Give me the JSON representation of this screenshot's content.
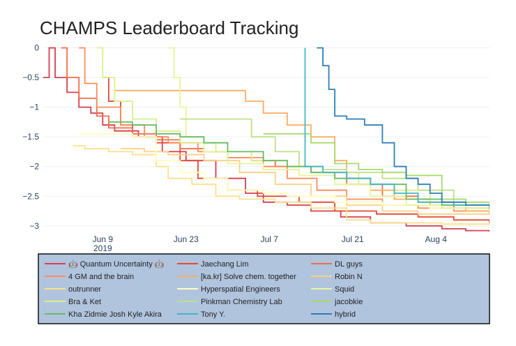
{
  "chart_data": {
    "type": "line",
    "title": "CHAMPS Leaderboard Tracking",
    "xlabel": "",
    "ylabel": "",
    "x_ticks": [
      {
        "label": "Jun 9",
        "sub": "2019",
        "day": 9
      },
      {
        "label": "Jun 23",
        "sub": "",
        "day": 23
      },
      {
        "label": "Jul 7",
        "sub": "",
        "day": 37
      },
      {
        "label": "Jul 21",
        "sub": "",
        "day": 51
      },
      {
        "label": "Aug 4",
        "sub": "",
        "day": 65
      }
    ],
    "y_ticks": [
      "0",
      "−0.5",
      "−1",
      "−1.5",
      "−2",
      "−2.5",
      "−3"
    ],
    "y_tick_values": [
      0,
      -0.5,
      -1,
      -1.5,
      -2,
      -2.5,
      -3
    ],
    "xlim_days": [
      -1,
      74
    ],
    "ylim": [
      -3.12,
      0.03
    ],
    "x_day_note": "days since Jun 0 2019",
    "legend_bg": "#b0c4de",
    "series": [
      {
        "name": "🤖 Quantum Uncertainty 🤖",
        "color": "#d53e4f",
        "points": [
          [
            -1,
            -0.5
          ],
          [
            0,
            -0.5
          ],
          [
            0,
            0
          ],
          [
            1,
            -0.5
          ],
          [
            3,
            -0.75
          ],
          [
            5,
            -1.0
          ],
          [
            7,
            -1.1
          ],
          [
            9,
            -1.3
          ],
          [
            11,
            -1.4
          ],
          [
            15,
            -1.5
          ],
          [
            19,
            -1.75
          ],
          [
            23,
            -1.9
          ],
          [
            28,
            -2.2
          ],
          [
            33,
            -2.45
          ],
          [
            36,
            -2.6
          ],
          [
            40,
            -2.65
          ],
          [
            44,
            -2.75
          ],
          [
            49,
            -2.85
          ],
          [
            54,
            -2.95
          ],
          [
            60,
            -3.0
          ],
          [
            66,
            -3.05
          ],
          [
            70,
            -3.08
          ],
          [
            74,
            -3.1
          ]
        ]
      },
      {
        "name": "Jaechang Lim",
        "color": "#e34a33",
        "points": [
          [
            9,
            -0.5
          ],
          [
            10,
            -0.9
          ],
          [
            12,
            -1.3
          ],
          [
            14,
            -1.5
          ],
          [
            18,
            -1.6
          ],
          [
            22,
            -1.9
          ],
          [
            25,
            -2.2
          ],
          [
            30,
            -2.4
          ],
          [
            35,
            -2.5
          ],
          [
            42,
            -2.6
          ],
          [
            48,
            -2.75
          ],
          [
            55,
            -2.8
          ],
          [
            62,
            -2.85
          ],
          [
            68,
            -2.9
          ],
          [
            74,
            -2.95
          ]
        ]
      },
      {
        "name": "DL guys",
        "color": "#f46d43",
        "points": [
          [
            2,
            0
          ],
          [
            3,
            -0.5
          ],
          [
            5,
            -0.85
          ],
          [
            8,
            -1.15
          ],
          [
            10,
            -1.35
          ],
          [
            14,
            -1.45
          ],
          [
            18,
            -1.55
          ],
          [
            22,
            -1.7
          ],
          [
            26,
            -1.75
          ],
          [
            30,
            -1.85
          ],
          [
            34,
            -1.9
          ],
          [
            38,
            -2.0
          ],
          [
            44,
            -2.1
          ],
          [
            50,
            -2.3
          ],
          [
            56,
            -2.5
          ],
          [
            62,
            -2.6
          ],
          [
            68,
            -2.7
          ],
          [
            74,
            -2.75
          ]
        ]
      },
      {
        "name": "4 GM and the brain",
        "color": "#fc8d59",
        "points": [
          [
            5,
            0
          ],
          [
            6,
            -0.6
          ],
          [
            8,
            -1.0
          ],
          [
            12,
            -1.3
          ],
          [
            16,
            -1.5
          ],
          [
            20,
            -1.6
          ],
          [
            25,
            -1.75
          ],
          [
            30,
            -1.85
          ],
          [
            36,
            -2.0
          ],
          [
            40,
            -2.2
          ],
          [
            45,
            -2.4
          ],
          [
            50,
            -2.55
          ],
          [
            56,
            -2.65
          ],
          [
            62,
            -2.7
          ],
          [
            68,
            -2.75
          ],
          [
            74,
            -2.8
          ]
        ]
      },
      {
        "name": "[ka.kr] Solve chem. together",
        "color": "#fdae61",
        "points": [
          [
            11,
            -0.72
          ],
          [
            22,
            -0.72
          ],
          [
            32,
            -0.72
          ],
          [
            33,
            -0.9
          ],
          [
            36,
            -1.1
          ],
          [
            40,
            -1.3
          ],
          [
            44,
            -1.5
          ],
          [
            48,
            -1.9
          ],
          [
            50,
            -2.2
          ],
          [
            54,
            -2.4
          ],
          [
            58,
            -2.55
          ],
          [
            64,
            -2.65
          ],
          [
            70,
            -2.75
          ],
          [
            74,
            -2.75
          ]
        ]
      },
      {
        "name": "Robin N",
        "color": "#fdd084",
        "points": [
          [
            12,
            -1.7
          ],
          [
            16,
            -1.75
          ],
          [
            20,
            -1.8
          ],
          [
            26,
            -1.9
          ],
          [
            32,
            -2.1
          ],
          [
            38,
            -2.3
          ],
          [
            44,
            -2.5
          ],
          [
            50,
            -2.65
          ],
          [
            56,
            -2.75
          ],
          [
            62,
            -2.8
          ],
          [
            68,
            -2.8
          ],
          [
            74,
            -2.82
          ]
        ]
      },
      {
        "name": "outrunner",
        "color": "#fee08b",
        "points": [
          [
            4,
            -1.65
          ],
          [
            6,
            -1.7
          ],
          [
            10,
            -1.75
          ],
          [
            14,
            -1.8
          ],
          [
            18,
            -2.0
          ],
          [
            20,
            -2.2
          ],
          [
            24,
            -2.3
          ],
          [
            28,
            -2.5
          ],
          [
            32,
            -2.55
          ],
          [
            38,
            -2.6
          ],
          [
            44,
            -2.7
          ],
          [
            50,
            -2.9
          ],
          [
            54,
            -2.95
          ],
          [
            60,
            -2.95
          ],
          [
            66,
            -2.97
          ],
          [
            74,
            -2.97
          ]
        ]
      },
      {
        "name": "Hyperspatial Engineers",
        "color": "#ffffbf",
        "points": [
          [
            5,
            -1.45
          ],
          [
            10,
            -1.45
          ],
          [
            14,
            -1.5
          ],
          [
            18,
            -1.9
          ],
          [
            22,
            -2.1
          ],
          [
            26,
            -2.2
          ],
          [
            30,
            -2.4
          ],
          [
            36,
            -2.45
          ],
          [
            40,
            -2.5
          ],
          [
            48,
            -2.6
          ],
          [
            56,
            -2.65
          ],
          [
            64,
            -2.7
          ],
          [
            74,
            -2.72
          ]
        ]
      },
      {
        "name": "Squid",
        "color": "#e6f598",
        "points": [
          [
            20,
            0
          ],
          [
            21,
            -0.5
          ],
          [
            22,
            -1.0
          ],
          [
            23,
            -1.5
          ],
          [
            26,
            -1.75
          ],
          [
            30,
            -1.95
          ],
          [
            36,
            -2.05
          ],
          [
            42,
            -2.15
          ],
          [
            48,
            -2.3
          ],
          [
            54,
            -2.5
          ],
          [
            60,
            -2.65
          ],
          [
            66,
            -2.7
          ],
          [
            74,
            -2.72
          ]
        ]
      },
      {
        "name": "Bra & Ket",
        "color": "#d9ef8b",
        "points": [
          [
            8,
            0
          ],
          [
            9,
            -0.5
          ],
          [
            11,
            -0.9
          ],
          [
            14,
            -1.2
          ],
          [
            18,
            -1.4
          ],
          [
            22,
            -1.6
          ],
          [
            28,
            -1.75
          ],
          [
            34,
            -1.9
          ],
          [
            40,
            -2.0
          ],
          [
            46,
            -2.1
          ],
          [
            52,
            -2.3
          ],
          [
            58,
            -2.4
          ],
          [
            64,
            -2.6
          ],
          [
            70,
            -2.7
          ],
          [
            74,
            -2.75
          ]
        ]
      },
      {
        "name": "Pinkman Chemistry Lab",
        "color": "#bfe08b",
        "points": [
          [
            22,
            -1.2
          ],
          [
            26,
            -1.2
          ],
          [
            30,
            -1.2
          ],
          [
            34,
            -1.5
          ],
          [
            38,
            -1.75
          ],
          [
            42,
            -2.0
          ],
          [
            46,
            -2.05
          ],
          [
            50,
            -2.1
          ],
          [
            56,
            -2.2
          ],
          [
            62,
            -2.4
          ],
          [
            68,
            -2.65
          ],
          [
            74,
            -2.7
          ]
        ]
      },
      {
        "name": "jacobkie",
        "color": "#a6d96a",
        "points": [
          [
            36,
            -1.45
          ],
          [
            40,
            -1.45
          ],
          [
            44,
            -1.6
          ],
          [
            48,
            -1.95
          ],
          [
            52,
            -2.05
          ],
          [
            56,
            -2.1
          ],
          [
            60,
            -2.15
          ],
          [
            64,
            -2.15
          ],
          [
            66,
            -2.15
          ],
          [
            66,
            -2.55
          ],
          [
            70,
            -2.6
          ],
          [
            74,
            -2.65
          ]
        ]
      },
      {
        "name": "Kha Zidmie Josh Kyle Akira",
        "color": "#66bd63",
        "points": [
          [
            10,
            -1.25
          ],
          [
            14,
            -1.3
          ],
          [
            18,
            -1.45
          ],
          [
            22,
            -1.5
          ],
          [
            26,
            -1.6
          ],
          [
            30,
            -1.75
          ],
          [
            36,
            -1.9
          ],
          [
            40,
            -2.0
          ],
          [
            44,
            -2.1
          ],
          [
            48,
            -2.2
          ],
          [
            54,
            -2.3
          ],
          [
            60,
            -2.55
          ],
          [
            66,
            -2.65
          ],
          [
            74,
            -2.72
          ]
        ]
      },
      {
        "name": "Tony Y.",
        "color": "#41b6c4",
        "points": [
          [
            43,
            0
          ],
          [
            43,
            -2.0
          ],
          [
            46,
            -2.1
          ],
          [
            50,
            -2.2
          ],
          [
            54,
            -2.3
          ],
          [
            58,
            -2.45
          ],
          [
            62,
            -2.6
          ],
          [
            68,
            -2.65
          ],
          [
            74,
            -2.68
          ]
        ]
      },
      {
        "name": "hybrid",
        "color": "#2c7fb8",
        "points": [
          [
            45,
            0
          ],
          [
            46,
            -0.3
          ],
          [
            47,
            -0.7
          ],
          [
            48,
            -1.15
          ],
          [
            50,
            -1.2
          ],
          [
            53,
            -1.3
          ],
          [
            56,
            -1.6
          ],
          [
            58,
            -2.0
          ],
          [
            60,
            -2.2
          ],
          [
            62,
            -2.3
          ],
          [
            64,
            -2.45
          ],
          [
            66,
            -2.6
          ],
          [
            70,
            -2.65
          ],
          [
            74,
            -2.68
          ]
        ]
      }
    ]
  }
}
